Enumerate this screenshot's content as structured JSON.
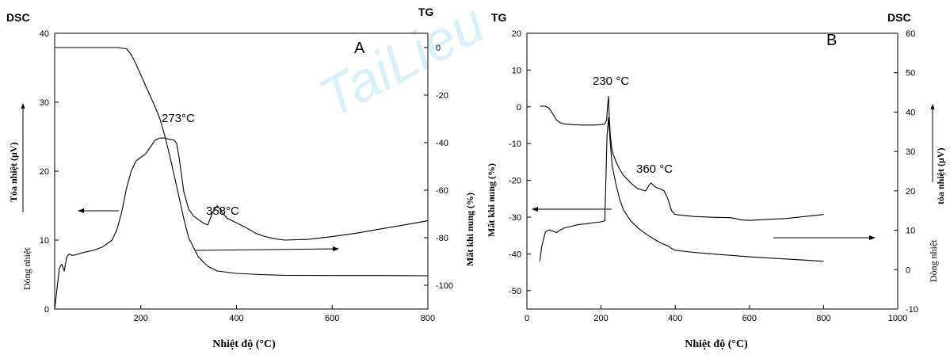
{
  "watermark": "TaiLieu",
  "chart_data": [
    {
      "type": "line",
      "panel": "A",
      "head_labels": {
        "left": "DSC",
        "right": "TG"
      },
      "xlabel": "Nhiệt độ (°C)",
      "ylabel_left": {
        "top": "Tỏa nhiệt (μV)",
        "bottom": "Dòng nhiệt"
      },
      "ylabel_right": "Mất khi nung (%)",
      "xlim": [
        20,
        800
      ],
      "ylim_left": [
        0,
        40
      ],
      "ylim_right": [
        -110,
        6
      ],
      "x_ticks": [
        200,
        400,
        600,
        800
      ],
      "y_left_ticks": [
        0,
        10,
        20,
        30,
        40
      ],
      "y_right_ticks": [
        0,
        -20,
        -40,
        -60,
        -80,
        -100
      ],
      "annotations": [
        {
          "text": "273°C",
          "x": 273
        },
        {
          "text": "358°C",
          "x": 358
        }
      ],
      "series": [
        {
          "axis": "left",
          "x": [
            20,
            25,
            30,
            35,
            40,
            45,
            50,
            55,
            60,
            70,
            80,
            100,
            120,
            140,
            150,
            160,
            170,
            180,
            190,
            200,
            210,
            220,
            230,
            240,
            250,
            260,
            270,
            275,
            280,
            290,
            300,
            310,
            320,
            330,
            340,
            350,
            360,
            370,
            380,
            400,
            420,
            440,
            460,
            480,
            500,
            550,
            600,
            650,
            700,
            750,
            800
          ],
          "y": [
            0,
            3,
            6,
            6.5,
            5.5,
            7.5,
            8,
            7.8,
            7.8,
            8,
            8.2,
            8.5,
            9,
            10,
            11.5,
            14,
            17.5,
            20,
            21.5,
            22,
            22.5,
            23.5,
            24.5,
            24.8,
            24.8,
            24.6,
            24.5,
            24,
            22,
            17,
            14.5,
            13.5,
            13,
            12.5,
            12.2,
            14,
            15,
            14,
            13.2,
            12.5,
            11.8,
            11,
            10.5,
            10.2,
            10,
            10.1,
            10.5,
            11,
            11.6,
            12.2,
            12.8
          ]
        },
        {
          "axis": "right",
          "x": [
            20,
            30,
            50,
            100,
            150,
            170,
            180,
            190,
            200,
            210,
            220,
            230,
            240,
            250,
            260,
            270,
            280,
            290,
            300,
            320,
            340,
            360,
            400,
            450,
            500,
            600,
            700,
            800
          ],
          "y": [
            0,
            0,
            0,
            0,
            0,
            -0.5,
            -3,
            -7,
            -11.5,
            -16,
            -20.5,
            -25,
            -30,
            -37,
            -45,
            -54,
            -63,
            -72,
            -80,
            -88,
            -92,
            -94,
            -95,
            -95.5,
            -95.8,
            -95.9,
            -95.9,
            -96
          ]
        }
      ]
    },
    {
      "type": "line",
      "panel": "B",
      "head_labels": {
        "left": "TG",
        "right": "DSC"
      },
      "xlabel": "Nhiệt độ (°C)",
      "ylabel_left": "Mất khi nung (%)",
      "ylabel_right": {
        "top": "tỏa nhiệt (μV)",
        "bottom": "Dòng nhiệt"
      },
      "xlim": [
        0,
        1000
      ],
      "ylim_left": [
        -55,
        20
      ],
      "ylim_right": [
        -10,
        60
      ],
      "x_ticks": [
        0,
        200,
        400,
        600,
        800,
        1000
      ],
      "y_left_ticks": [
        20,
        10,
        0,
        -10,
        -20,
        -30,
        -40,
        -50
      ],
      "y_right_ticks": [
        60,
        50,
        40,
        30,
        20,
        10,
        0,
        -10
      ],
      "annotations": [
        {
          "text": "230 °C",
          "x": 230
        },
        {
          "text": "360 °C",
          "x": 360
        }
      ],
      "series": [
        {
          "axis": "left",
          "x": [
            35,
            40,
            50,
            60,
            70,
            80,
            90,
            100,
            120,
            140,
            160,
            180,
            200,
            210,
            213,
            216,
            220,
            225,
            230,
            240,
            250,
            260,
            280,
            300,
            320,
            340,
            360,
            380,
            390,
            395,
            400,
            450,
            500,
            600,
            700,
            800
          ],
          "y": [
            -42,
            -38,
            -34,
            -33.5,
            -33.8,
            -34.2,
            -33.5,
            -33,
            -32.5,
            -32,
            -31.8,
            -31.5,
            -31.3,
            -31,
            -20,
            -8,
            -3,
            -10,
            -16,
            -21,
            -25,
            -28,
            -31,
            -33,
            -34.5,
            -35.8,
            -37,
            -37.8,
            -38.5,
            -38.8,
            -39,
            -39.6,
            -40,
            -40.8,
            -41.4,
            -42
          ]
        },
        {
          "axis": "right",
          "x": [
            35,
            50,
            60,
            70,
            80,
            90,
            100,
            120,
            150,
            180,
            200,
            210,
            215,
            218,
            220,
            222,
            225,
            230,
            240,
            250,
            260,
            280,
            300,
            320,
            330,
            335,
            340,
            350,
            360,
            370,
            380,
            390,
            400,
            450,
            500,
            550,
            560,
            570,
            580,
            600,
            700,
            800
          ],
          "y": [
            41.5,
            41.5,
            41,
            39.5,
            38,
            37.3,
            37,
            36.8,
            36.7,
            36.7,
            36.8,
            37,
            38,
            42,
            44,
            39,
            34,
            30,
            27.5,
            25.5,
            24,
            22,
            20.5,
            20,
            21.5,
            22,
            21.5,
            20.8,
            20.5,
            20,
            18,
            15,
            14,
            13.5,
            13.3,
            13.2,
            13,
            12.8,
            12.6,
            12.5,
            13,
            14
          ]
        }
      ]
    }
  ]
}
